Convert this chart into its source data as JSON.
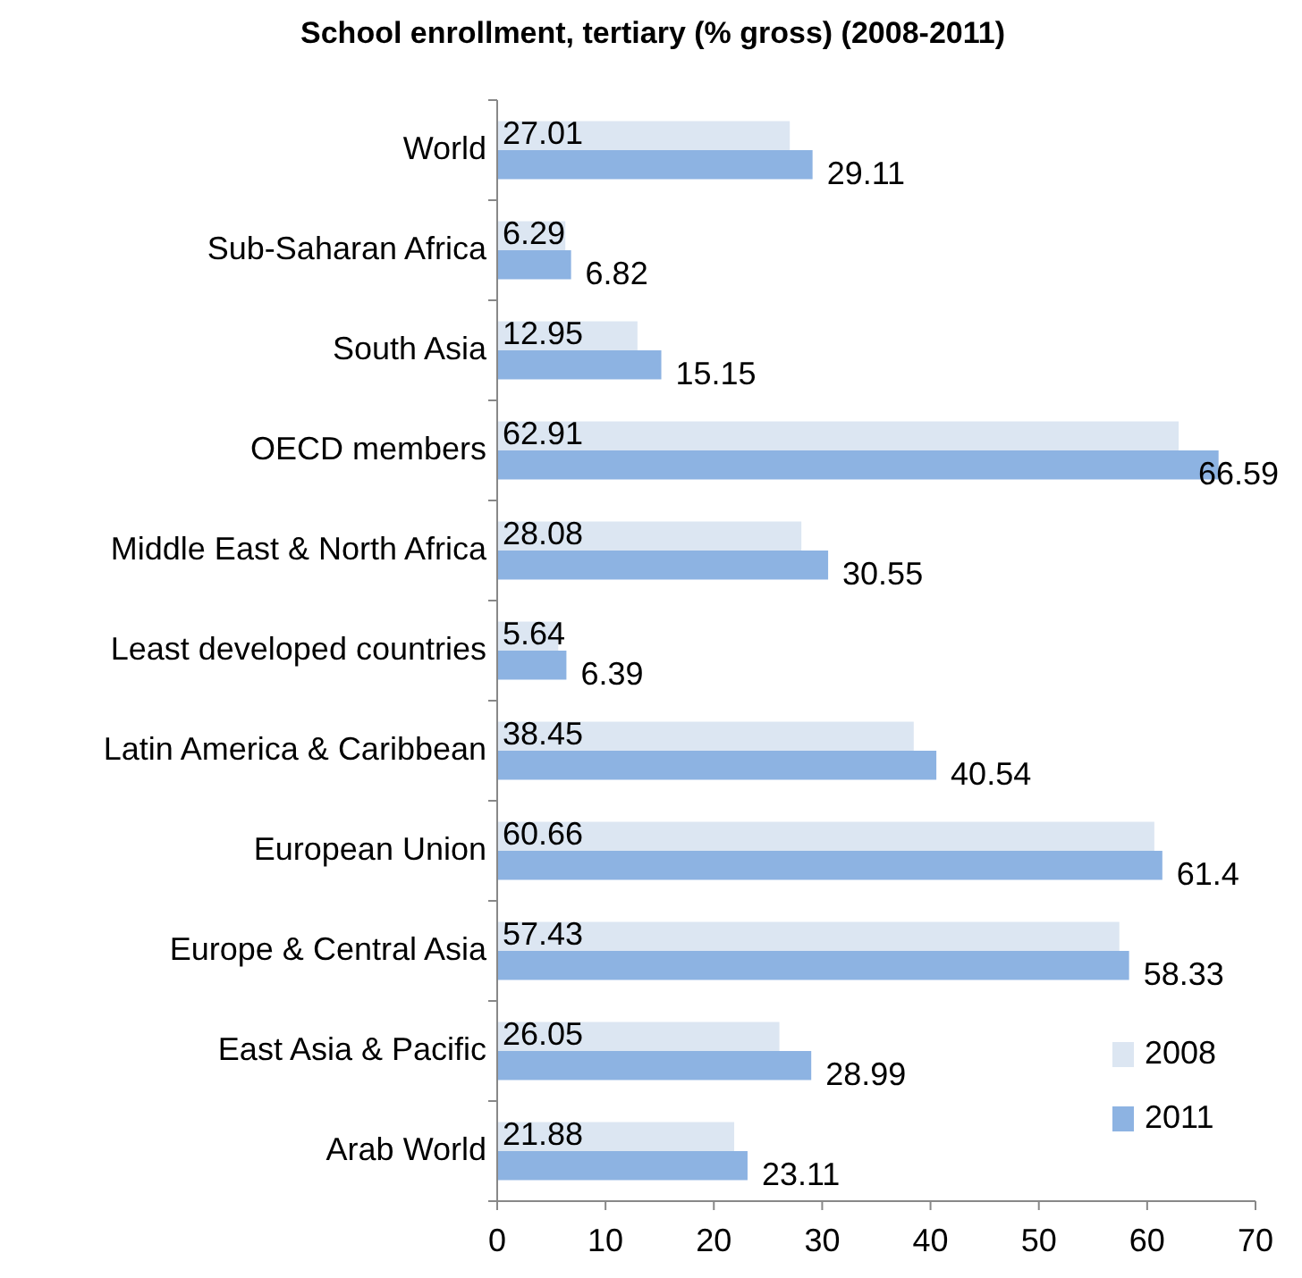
{
  "chart_data": {
    "type": "bar",
    "orientation": "horizontal",
    "title": "School enrollment, tertiary (% gross) (2008-2011)",
    "categories": [
      "World",
      "Sub-Saharan Africa",
      "South Asia",
      "OECD members",
      "Middle East & North Africa",
      "Least developed countries",
      "Latin America & Caribbean",
      "European Union",
      "Europe & Central Asia",
      "East Asia & Pacific",
      "Arab World"
    ],
    "series": [
      {
        "name": "2008",
        "color": "#dce6f2",
        "values": [
          27.01,
          6.29,
          12.95,
          62.91,
          28.08,
          5.64,
          38.45,
          60.66,
          57.43,
          26.05,
          21.88
        ]
      },
      {
        "name": "2011",
        "color": "#8db3e2",
        "values": [
          29.11,
          6.82,
          15.15,
          66.59,
          30.55,
          6.39,
          40.54,
          61.4,
          58.33,
          28.99,
          23.11
        ]
      }
    ],
    "xlim": [
      0,
      70
    ],
    "xticks": [
      0,
      10,
      20,
      30,
      40,
      50,
      60,
      70
    ],
    "data_labels": true,
    "legend": "bottom right"
  }
}
